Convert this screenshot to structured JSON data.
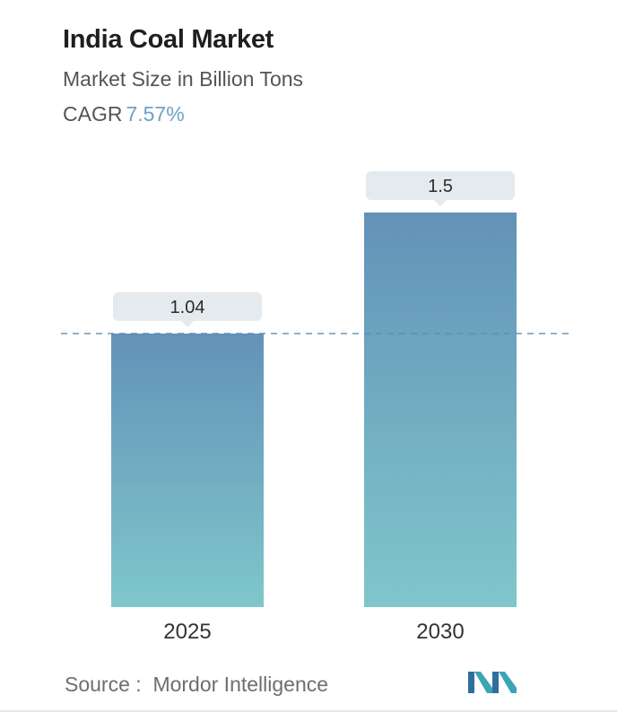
{
  "header": {
    "title": "India Coal Market",
    "subtitle": "Market Size in Billion Tons",
    "cagr_label": "CAGR",
    "cagr_value": "7.57%"
  },
  "chart_data": {
    "type": "bar",
    "title": "India Coal Market",
    "ylabel": "Market Size in Billion Tons",
    "xlabel": "",
    "categories": [
      "2025",
      "2030"
    ],
    "values": [
      1.04,
      1.5
    ],
    "data_labels": [
      "1.04",
      "1.5"
    ],
    "ylim": [
      0,
      1.5
    ],
    "reference_line": 1.04,
    "grid": false,
    "colors": {
      "bar_top": "#6392b8",
      "bar_bottom": "#7fc7cb",
      "label_bg": "#e4eaed",
      "dashed_line": "#5f8db1"
    }
  },
  "footer": {
    "source_label": "Source :",
    "source_name": "Mordor Intelligence",
    "logo_icon": "mordor-intelligence-logo-icon"
  }
}
